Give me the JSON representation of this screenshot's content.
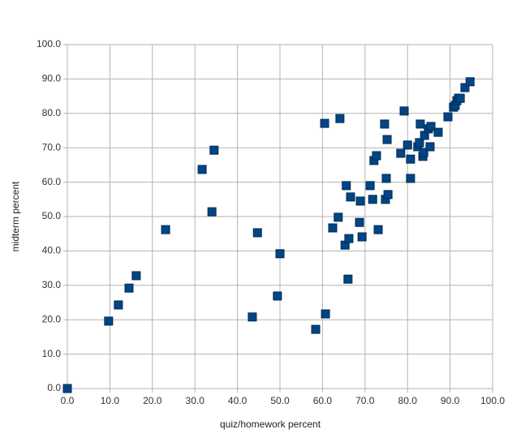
{
  "chart_data": {
    "type": "scatter",
    "x_label": "quiz/homework percent",
    "y_label": "midterm percent",
    "color": "#004586",
    "grid": true,
    "xlim": [
      0,
      100
    ],
    "ylim": [
      0,
      100
    ],
    "xticks": [
      {
        "value": 0,
        "label": "0.0"
      },
      {
        "value": 10,
        "label": "10.0"
      },
      {
        "value": 20,
        "label": "20.0"
      },
      {
        "value": 30,
        "label": "30.0"
      },
      {
        "value": 40,
        "label": "40.0"
      },
      {
        "value": 50,
        "label": "50.0"
      },
      {
        "value": 60,
        "label": "60.0"
      },
      {
        "value": 70,
        "label": "70.0"
      },
      {
        "value": 80,
        "label": "80.0"
      },
      {
        "value": 90,
        "label": "90.0"
      },
      {
        "value": 100,
        "label": "100.0"
      }
    ],
    "yticks": [
      {
        "value": 0,
        "label": "0.0"
      },
      {
        "value": 10,
        "label": "10.0"
      },
      {
        "value": 20,
        "label": "20.0"
      },
      {
        "value": 30,
        "label": "30.0"
      },
      {
        "value": 40,
        "label": "40.0"
      },
      {
        "value": 50,
        "label": "50.0"
      },
      {
        "value": 60,
        "label": "60.0"
      },
      {
        "value": 70,
        "label": "70.0"
      },
      {
        "value": 80,
        "label": "80.0"
      },
      {
        "value": 90,
        "label": "90.0"
      },
      {
        "value": 100,
        "label": "100.0"
      }
    ],
    "x": [
      0,
      9.7,
      12.0,
      14.5,
      16.2,
      23.1,
      31.7,
      34.0,
      34.5,
      43.5,
      44.7,
      49.4,
      50.0,
      58.4,
      60.5,
      60.7,
      62.4,
      63.7,
      64.1,
      65.3,
      65.6,
      66.0,
      66.2,
      66.6,
      68.7,
      68.9,
      69.3,
      71.2,
      71.8,
      72.1,
      72.7,
      73.1,
      74.6,
      74.8,
      75.0,
      75.2,
      75.4,
      78.4,
      79.2,
      80.0,
      80.7,
      80.7,
      82.4,
      82.8,
      83.0,
      83.6,
      83.8,
      84.0,
      84.9,
      85.3,
      85.5,
      87.2,
      89.5,
      90.8,
      91.2,
      91.6,
      92.0,
      92.4,
      93.5,
      94.7
    ],
    "values": [
      0,
      19.6,
      24.3,
      29.2,
      32.8,
      46.2,
      63.7,
      51.4,
      69.3,
      20.8,
      45.3,
      26.9,
      39.2,
      17.2,
      77.1,
      21.7,
      46.7,
      49.8,
      78.5,
      41.7,
      59.0,
      31.8,
      43.6,
      55.7,
      48.3,
      54.5,
      44.1,
      59.0,
      55.0,
      66.3,
      67.7,
      46.2,
      76.9,
      55.0,
      61.1,
      72.4,
      56.4,
      68.4,
      80.7,
      70.8,
      66.7,
      61.1,
      70.3,
      71.5,
      76.9,
      67.5,
      68.6,
      73.6,
      75.5,
      70.3,
      76.2,
      74.5,
      79.0,
      81.8,
      82.3,
      83.7,
      84.4,
      84.4,
      87.5,
      89.2
    ]
  }
}
